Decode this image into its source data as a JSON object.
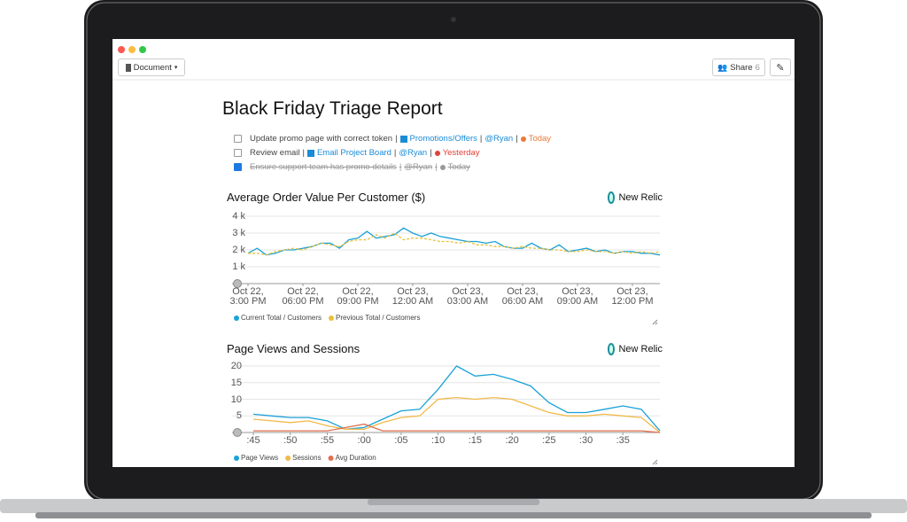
{
  "toolbar": {
    "document_button": "Document",
    "share_button": "Share",
    "share_count": "6"
  },
  "document": {
    "title": "Black Friday Triage Report",
    "separator": "|",
    "tasks": [
      {
        "text": "Update promo page with correct token",
        "link": "Promotions/Offers",
        "mention": "@Ryan",
        "due": "Today",
        "done": false
      },
      {
        "text": "Review email",
        "link": "Email Project Board",
        "mention": "@Ryan",
        "due": "Yesterday",
        "done": false
      },
      {
        "text": "Ensure support team has promo details",
        "link": null,
        "mention": "@Ryan",
        "due": "Today",
        "done": true
      }
    ]
  },
  "chart_data": [
    {
      "type": "line",
      "title": "Average Order Value Per Customer ($)",
      "badge": "New Relic",
      "categories": [
        "Oct 22,\n3:00 PM",
        null,
        null,
        null,
        null,
        null,
        "Oct 22,\n06:00 PM",
        null,
        null,
        null,
        null,
        null,
        "Oct 22,\n09:00 PM",
        null,
        null,
        null,
        null,
        null,
        "Oct 23,\n12:00 AM",
        null,
        null,
        null,
        null,
        null,
        "Oct 23,\n03:00 AM",
        null,
        null,
        null,
        null,
        null,
        "Oct 23,\n06:00 AM",
        null,
        null,
        null,
        null,
        null,
        "Oct 23,\n09:00 AM",
        null,
        null,
        null,
        null,
        null,
        "Oct 23,\n12:00 PM",
        null,
        null,
        null
      ],
      "series": [
        {
          "name": "Current Total / Customers",
          "color": "#1aa1d6",
          "dash": false,
          "values": [
            1800,
            2100,
            1700,
            1800,
            2000,
            2000,
            2100,
            2200,
            2400,
            2400,
            2100,
            2600,
            2700,
            3100,
            2700,
            2800,
            2900,
            3300,
            3000,
            2800,
            3000,
            2800,
            2700,
            2600,
            2500,
            2500,
            2400,
            2500,
            2200,
            2100,
            2100,
            2400,
            2100,
            2000,
            2300,
            1900,
            2000,
            2100,
            1900,
            2000,
            1800,
            1900,
            1900,
            1800,
            1800,
            1700
          ]
        },
        {
          "name": "Previous Total / Customers",
          "color": "#e8c13a",
          "dash": true,
          "values": [
            1800,
            1800,
            1700,
            1900,
            2000,
            2100,
            2000,
            2200,
            2400,
            2300,
            2200,
            2500,
            2600,
            2600,
            2900,
            2700,
            3000,
            2600,
            2700,
            2700,
            2600,
            2500,
            2500,
            2400,
            2500,
            2300,
            2300,
            2200,
            2200,
            2100,
            2200,
            2100,
            2100,
            2000,
            2000,
            1900,
            1900,
            2000,
            1900,
            1900,
            1800,
            1900,
            1800,
            1900,
            1800,
            1900
          ]
        }
      ],
      "ylim": [
        0,
        4000
      ],
      "yticks": [
        {
          "value": 1000,
          "label": "1 k"
        },
        {
          "value": 2000,
          "label": "2 k"
        },
        {
          "value": 3000,
          "label": "3 k"
        },
        {
          "value": 4000,
          "label": "4 k"
        }
      ],
      "grid": true
    },
    {
      "type": "line",
      "title": "Page Views and Sessions",
      "badge": "New Relic",
      "categories": [
        ":45",
        null,
        ":50",
        null,
        ":55",
        null,
        ":00",
        null,
        ":05",
        null,
        ":10",
        null,
        ":15",
        null,
        ":20",
        null,
        ":25",
        null,
        ":30",
        null,
        ":35",
        null,
        null
      ],
      "series": [
        {
          "name": "Page Views",
          "color": "#1aa1d6",
          "dash": false,
          "values": [
            5.5,
            5,
            4.5,
            4.5,
            3.5,
            1,
            1.5,
            4,
            6.5,
            7,
            13,
            20,
            17,
            17.5,
            16,
            14,
            9,
            6,
            6,
            7,
            8,
            7,
            0.5
          ]
        },
        {
          "name": "Sessions",
          "color": "#f0b949",
          "dash": false,
          "values": [
            4,
            3.5,
            3,
            3.5,
            2,
            1,
            1,
            3,
            4.5,
            5,
            10,
            10.5,
            10,
            10.5,
            10,
            8,
            6,
            5,
            5,
            5.5,
            5,
            4.5,
            0
          ]
        },
        {
          "name": "Avg Duration",
          "color": "#e2704d",
          "dash": false,
          "values": [
            0.5,
            0.5,
            0.5,
            0.5,
            0.5,
            1.5,
            2.5,
            0.5,
            0.5,
            0.5,
            0.5,
            0.5,
            0.5,
            0.5,
            0.5,
            0.5,
            0.5,
            0.5,
            0.5,
            0.5,
            0.5,
            0.5,
            0
          ]
        }
      ],
      "ylim": [
        0,
        20
      ],
      "yticks": [
        5,
        10,
        15,
        20
      ],
      "grid": true
    }
  ]
}
